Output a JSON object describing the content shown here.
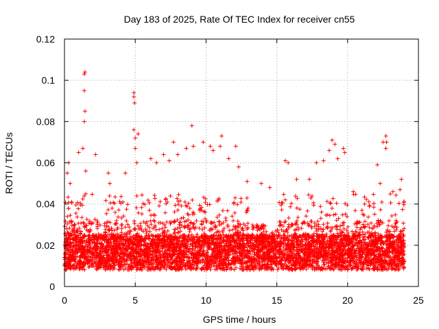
{
  "chart_data": {
    "type": "scatter",
    "title": "Day 183 of 2025, Rate Of TEC Index for receiver cn55",
    "xlabel": "GPS time / hours",
    "ylabel": "ROTI / TECUs",
    "xlim": [
      0,
      25
    ],
    "ylim": [
      0,
      0.12
    ],
    "xticks": [
      0,
      5,
      10,
      15,
      20,
      25
    ],
    "xtick_labels": [
      "0",
      "5",
      "10",
      "15",
      "20",
      "25"
    ],
    "yticks": [
      0,
      0.02,
      0.04,
      0.06,
      0.08,
      0.1,
      0.12
    ],
    "ytick_labels": [
      "0",
      "0.02",
      "0.04",
      "0.06",
      "0.08",
      "0.1",
      "0.12"
    ],
    "grid": true,
    "marker": "+",
    "marker_color": "#ff0000",
    "series": [
      {
        "name": "ROTI",
        "description_of_distribution": "dense band 0.008-0.035 across 0-24 h",
        "points": [
          [
            0.1,
            0.012
          ],
          [
            0.2,
            0.055
          ],
          [
            0.3,
            0.06
          ],
          [
            0.4,
            0.05
          ],
          [
            0.5,
            0.041
          ],
          [
            1.0,
            0.065
          ],
          [
            1.3,
            0.067
          ],
          [
            1.4,
            0.103
          ],
          [
            1.45,
            0.104
          ],
          [
            1.4,
            0.095
          ],
          [
            1.45,
            0.085
          ],
          [
            1.4,
            0.08
          ],
          [
            1.5,
            0.056
          ],
          [
            2.2,
            0.064
          ],
          [
            3.1,
            0.055
          ],
          [
            3.2,
            0.05
          ],
          [
            4.3,
            0.055
          ],
          [
            4.9,
            0.094
          ],
          [
            4.9,
            0.092
          ],
          [
            4.95,
            0.089
          ],
          [
            4.9,
            0.076
          ],
          [
            5.0,
            0.072
          ],
          [
            5.2,
            0.074
          ],
          [
            5.0,
            0.067
          ],
          [
            5.1,
            0.06
          ],
          [
            6.1,
            0.062
          ],
          [
            6.5,
            0.06
          ],
          [
            7.0,
            0.064
          ],
          [
            7.4,
            0.061
          ],
          [
            7.7,
            0.07
          ],
          [
            8.0,
            0.064
          ],
          [
            8.6,
            0.067
          ],
          [
            9.0,
            0.078
          ],
          [
            9.1,
            0.068
          ],
          [
            9.8,
            0.07
          ],
          [
            10.3,
            0.068
          ],
          [
            10.5,
            0.066
          ],
          [
            11.1,
            0.073
          ],
          [
            11.0,
            0.068
          ],
          [
            11.6,
            0.062
          ],
          [
            12.1,
            0.068
          ],
          [
            12.3,
            0.058
          ],
          [
            12.9,
            0.051
          ],
          [
            13.9,
            0.05
          ],
          [
            14.5,
            0.048
          ],
          [
            15.6,
            0.061
          ],
          [
            15.8,
            0.06
          ],
          [
            16.4,
            0.052
          ],
          [
            17.3,
            0.052
          ],
          [
            17.8,
            0.06
          ],
          [
            18.3,
            0.061
          ],
          [
            18.7,
            0.066
          ],
          [
            18.9,
            0.071
          ],
          [
            19.1,
            0.069
          ],
          [
            19.3,
            0.062
          ],
          [
            19.7,
            0.067
          ],
          [
            19.8,
            0.065
          ],
          [
            20.4,
            0.046
          ],
          [
            21.2,
            0.04
          ],
          [
            22.1,
            0.059
          ],
          [
            22.3,
            0.05
          ],
          [
            22.5,
            0.07
          ],
          [
            22.7,
            0.073
          ],
          [
            22.75,
            0.07
          ],
          [
            22.7,
            0.067
          ],
          [
            23.2,
            0.046
          ],
          [
            23.8,
            0.052
          ],
          [
            23.7,
            0.047
          ]
        ]
      }
    ]
  }
}
